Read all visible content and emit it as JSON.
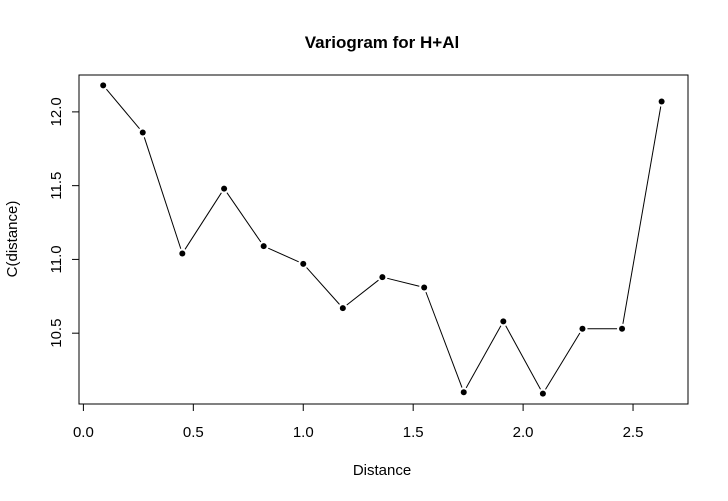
{
  "chart_data": {
    "type": "line",
    "title": "Variogram for H+Al",
    "xlabel": "Distance",
    "ylabel": "C(distance)",
    "xlim": [
      -0.02,
      2.75
    ],
    "ylim": [
      10.02,
      12.25
    ],
    "grid": false,
    "xticks": [
      "0.0",
      "0.5",
      "1.0",
      "1.5",
      "2.0",
      "2.5"
    ],
    "yticks": [
      "10.5",
      "11.0",
      "11.5",
      "12.0"
    ],
    "x": [
      0.09,
      0.27,
      0.45,
      0.64,
      0.82,
      1.0,
      1.18,
      1.36,
      1.55,
      1.73,
      1.91,
      2.09,
      2.27,
      2.45,
      2.63
    ],
    "y": [
      12.18,
      11.86,
      11.04,
      11.48,
      11.09,
      10.97,
      10.67,
      10.88,
      10.81,
      10.1,
      10.58,
      10.09,
      10.53,
      10.53,
      12.07
    ]
  }
}
